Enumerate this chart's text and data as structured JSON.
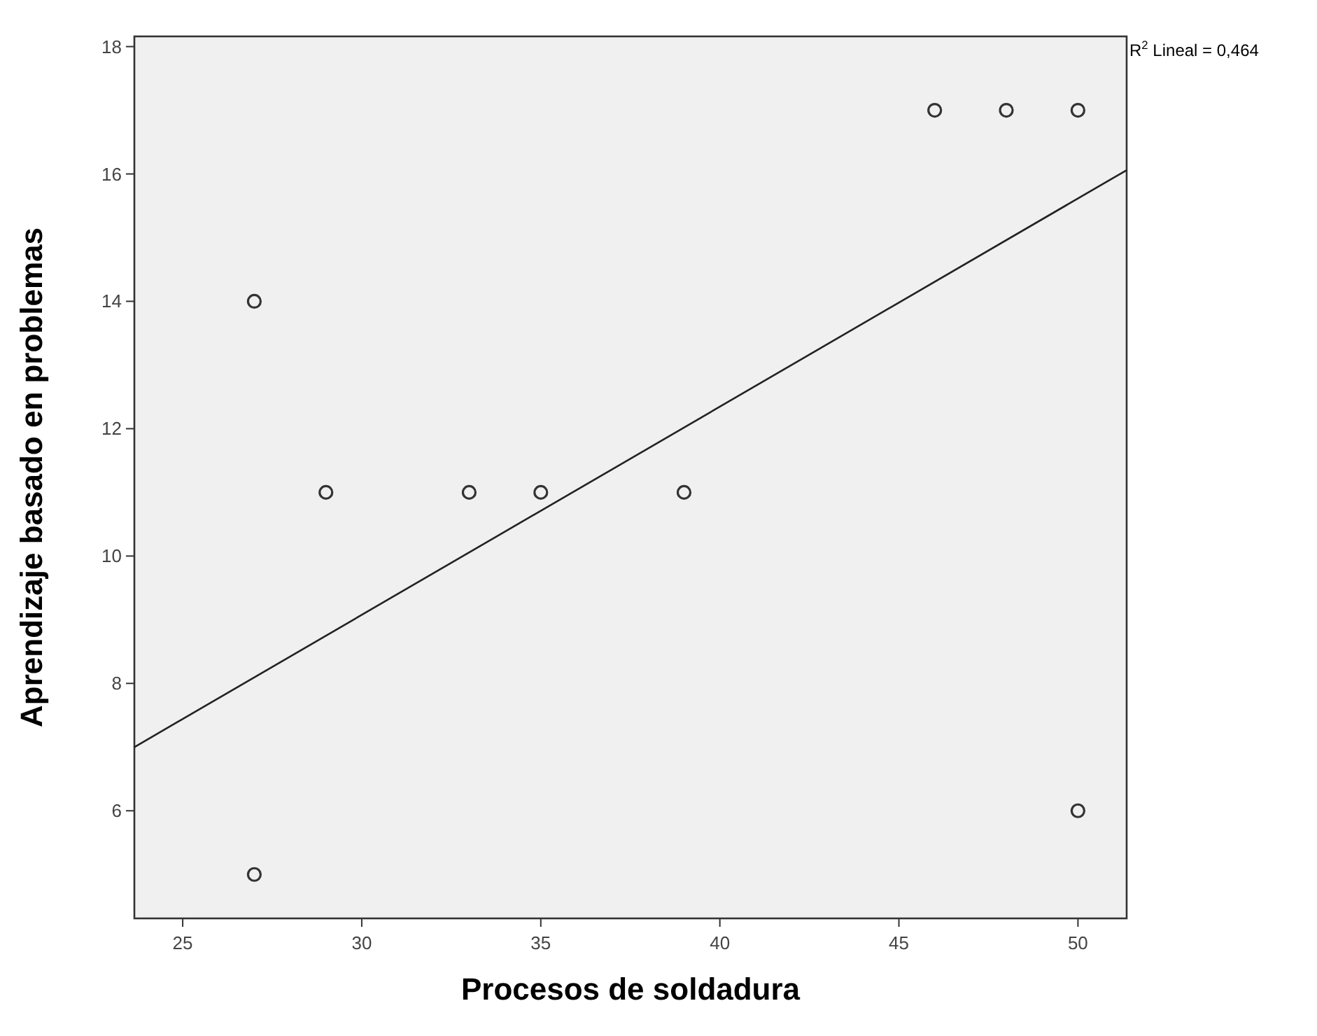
{
  "chart_data": {
    "type": "scatter",
    "xlabel": "Procesos de soldadura",
    "ylabel": "Aprendizaje basado en problemas",
    "annotations": [
      "R$^{2}$ Lineal = 0,464"
    ],
    "xlim": [
      23.65,
      51.36
    ],
    "xticks": [
      25,
      30,
      35,
      40,
      45,
      50
    ],
    "ylim": [
      4.31,
      18.16
    ],
    "yticks": [
      6,
      8,
      10,
      12,
      14,
      16,
      18
    ],
    "grid": false,
    "series": [
      {
        "marker": "circle",
        "color": "#333333",
        "x": [
          27,
          29,
          33,
          35,
          39,
          46,
          48,
          50,
          27,
          50
        ],
        "values": [
          14,
          11,
          11,
          11,
          11,
          17,
          17,
          17,
          5,
          6
        ]
      },
      {
        "type": "line",
        "color": "#222222",
        "x": [
          23.65,
          51.36
        ],
        "values": [
          7.0,
          16.06
        ]
      }
    ]
  }
}
